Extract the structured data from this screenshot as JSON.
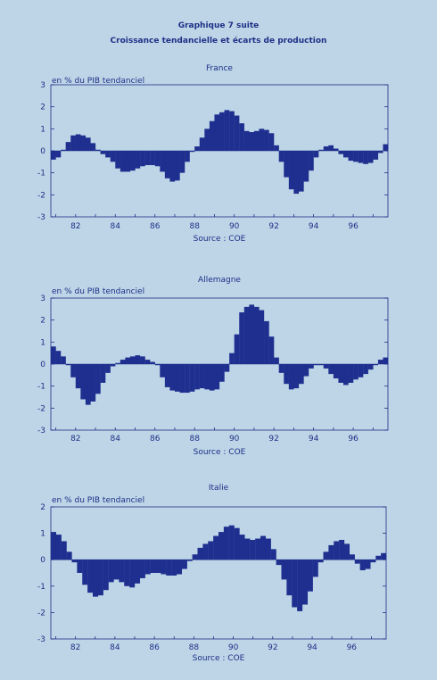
{
  "header": {
    "title": "Graphique 7 suite",
    "subtitle": "Croissance tendancielle et écarts de production"
  },
  "colors": {
    "bar": "#1f2f8f",
    "axis": "#1f2f86",
    "background": "#bdd5e7"
  },
  "chart_data": [
    {
      "type": "bar",
      "title": "France",
      "ylabel": "en % du PIB tendanciel",
      "source": "Source : COE",
      "ylim": [
        -3,
        3
      ],
      "yticks": [
        "3",
        "2",
        "1",
        "0",
        "-1",
        "-2",
        "-3"
      ],
      "x_start": 1980.75,
      "x_end": 1997.75,
      "x_ticks": [
        "82",
        "84",
        "86",
        "88",
        "90",
        "92",
        "94",
        "96"
      ],
      "x_tick_years": [
        1982,
        1984,
        1986,
        1988,
        1990,
        1992,
        1994,
        1996
      ],
      "values": [
        -0.4,
        -0.3,
        0.05,
        0.4,
        0.7,
        0.75,
        0.7,
        0.6,
        0.35,
        0.05,
        -0.15,
        -0.3,
        -0.5,
        -0.8,
        -0.95,
        -0.95,
        -0.9,
        -0.8,
        -0.7,
        -0.65,
        -0.65,
        -0.7,
        -0.95,
        -1.25,
        -1.4,
        -1.35,
        -1.0,
        -0.5,
        -0.05,
        0.2,
        0.6,
        1.0,
        1.35,
        1.65,
        1.75,
        1.85,
        1.8,
        1.6,
        1.25,
        0.9,
        0.85,
        0.9,
        1.0,
        0.95,
        0.8,
        0.25,
        -0.5,
        -1.2,
        -1.75,
        -1.95,
        -1.85,
        -1.4,
        -0.9,
        -0.3,
        0.05,
        0.2,
        0.25,
        0.1,
        -0.15,
        -0.3,
        -0.45,
        -0.5,
        -0.55,
        -0.6,
        -0.55,
        -0.4,
        -0.1,
        0.3
      ]
    },
    {
      "type": "bar",
      "title": "Allemagne",
      "ylabel": "en % du PIB tendanciel",
      "source": "Source : COE",
      "ylim": [
        -3,
        3
      ],
      "yticks": [
        "3",
        "2",
        "1",
        "0",
        "-1",
        "-2",
        "-3"
      ],
      "x_start": 1980.75,
      "x_end": 1997.75,
      "x_ticks": [
        "82",
        "84",
        "86",
        "88",
        "90",
        "92",
        "94",
        "96"
      ],
      "x_tick_years": [
        1982,
        1984,
        1986,
        1988,
        1990,
        1992,
        1994,
        1996
      ],
      "values": [
        0.8,
        0.6,
        0.35,
        -0.05,
        -0.6,
        -1.1,
        -1.6,
        -1.85,
        -1.7,
        -1.35,
        -0.85,
        -0.4,
        -0.1,
        0.05,
        0.2,
        0.3,
        0.35,
        0.4,
        0.35,
        0.2,
        0.1,
        -0.05,
        -0.6,
        -1.05,
        -1.2,
        -1.25,
        -1.3,
        -1.3,
        -1.25,
        -1.15,
        -1.1,
        -1.15,
        -1.2,
        -1.15,
        -0.8,
        -0.35,
        0.5,
        1.35,
        2.35,
        2.6,
        2.7,
        2.6,
        2.45,
        1.95,
        1.25,
        0.3,
        -0.4,
        -0.9,
        -1.15,
        -1.1,
        -0.9,
        -0.55,
        -0.2,
        -0.05,
        -0.05,
        -0.2,
        -0.45,
        -0.65,
        -0.85,
        -0.95,
        -0.85,
        -0.7,
        -0.6,
        -0.45,
        -0.25,
        -0.05,
        0.2,
        0.3
      ]
    },
    {
      "type": "bar",
      "title": "Italie",
      "ylabel": "en % du PIB tendanciel",
      "source": "Source : COE",
      "ylim": [
        -3,
        2
      ],
      "yticks": [
        "2",
        "1",
        "0",
        "-1",
        "-2",
        "-3"
      ],
      "x_start": 1980.75,
      "x_end": 1997.75,
      "x_ticks": [
        "82",
        "84",
        "86",
        "88",
        "90",
        "92",
        "94",
        "96"
      ],
      "x_tick_years": [
        1982,
        1984,
        1986,
        1988,
        1990,
        1992,
        1994,
        1996
      ],
      "values": [
        1.05,
        0.95,
        0.7,
        0.3,
        -0.1,
        -0.5,
        -0.95,
        -1.25,
        -1.4,
        -1.35,
        -1.15,
        -0.85,
        -0.75,
        -0.85,
        -1.0,
        -1.05,
        -0.9,
        -0.7,
        -0.55,
        -0.5,
        -0.5,
        -0.55,
        -0.6,
        -0.6,
        -0.55,
        -0.35,
        -0.05,
        0.2,
        0.45,
        0.6,
        0.7,
        0.9,
        1.05,
        1.25,
        1.3,
        1.2,
        0.95,
        0.8,
        0.75,
        0.8,
        0.9,
        0.8,
        0.4,
        -0.2,
        -0.75,
        -1.35,
        -1.8,
        -1.95,
        -1.7,
        -1.2,
        -0.65,
        -0.1,
        0.3,
        0.55,
        0.7,
        0.75,
        0.6,
        0.2,
        -0.15,
        -0.4,
        -0.35,
        -0.1,
        0.15,
        0.25
      ]
    }
  ]
}
